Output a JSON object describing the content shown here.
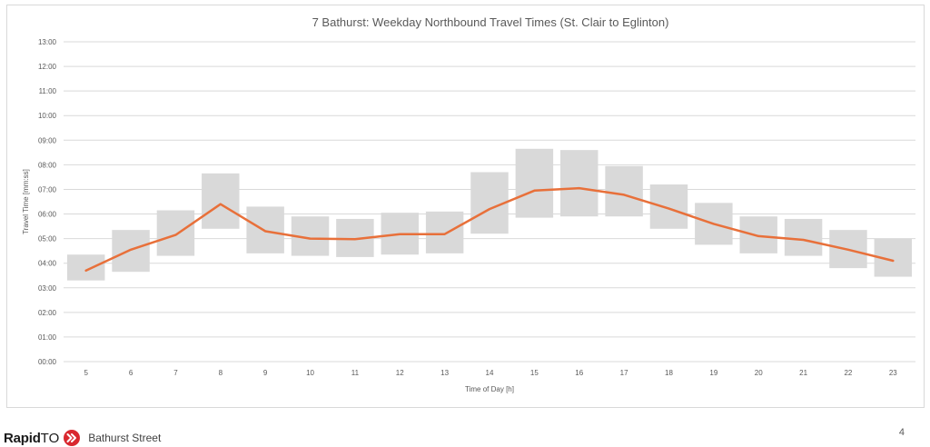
{
  "chart_data": {
    "type": "box-line",
    "title": "7 Bathurst: Weekday Northbound Travel Times (St. Clair to Eglinton)",
    "xlabel": "Time of Day [h]",
    "ylabel": "Travel Time [mm:ss]",
    "y_ticks": [
      "00:00",
      "01:00",
      "02:00",
      "03:00",
      "04:00",
      "05:00",
      "06:00",
      "07:00",
      "08:00",
      "09:00",
      "10:00",
      "11:00",
      "12:00",
      "13:00"
    ],
    "ylim_minutes": [
      0,
      13
    ],
    "grid": true,
    "categories": [
      "5",
      "6",
      "7",
      "8",
      "9",
      "10",
      "11",
      "12",
      "13",
      "14",
      "15",
      "16",
      "17",
      "18",
      "19",
      "20",
      "21",
      "22",
      "23"
    ],
    "range_series": {
      "low_minutes": [
        3.3,
        3.65,
        4.3,
        5.4,
        4.4,
        4.3,
        4.25,
        4.35,
        4.4,
        5.2,
        5.85,
        5.9,
        5.9,
        5.4,
        4.75,
        4.4,
        4.3,
        3.8,
        3.45
      ],
      "high_minutes": [
        4.35,
        5.35,
        6.15,
        7.65,
        6.3,
        5.9,
        5.8,
        6.05,
        6.1,
        7.7,
        8.65,
        8.6,
        7.95,
        7.2,
        6.45,
        5.9,
        5.8,
        5.35,
        5.0
      ]
    },
    "line_series": {
      "values_minutes": [
        3.7,
        4.55,
        5.15,
        6.4,
        5.3,
        5.0,
        4.98,
        5.18,
        5.18,
        6.2,
        6.95,
        7.05,
        6.78,
        6.22,
        5.6,
        5.1,
        4.95,
        4.55,
        4.1
      ]
    },
    "colors": {
      "range": "#d9d9d9",
      "line": "#e8703a",
      "grid": "#d9d9d9",
      "text": "#595959"
    }
  },
  "footer": {
    "brand_bold": "Rapid",
    "brand_light": "TO",
    "street": "Bathurst Street",
    "page_number": "4",
    "arrow_icon": "double-chevron-right-icon",
    "arrow_color": "#d9282f"
  }
}
